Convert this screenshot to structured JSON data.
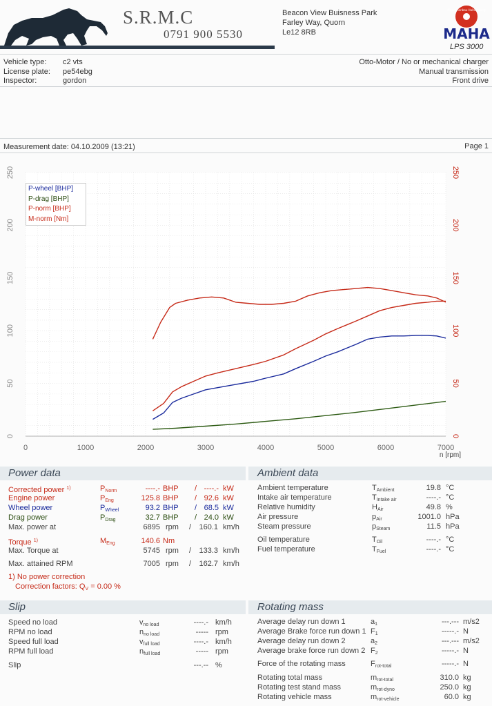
{
  "header": {
    "company": "S.R.M.C",
    "phone": "0791 900 5530",
    "address": [
      "Beacon View Buisness Park",
      "Farley Way, Quorn",
      "Le12 8RB"
    ],
    "brand_logo": "MAHA",
    "brand_tag": "Maschinenbau Haldenwang",
    "model": "LPS 3000"
  },
  "vehicle": {
    "labels": [
      "Vehicle type:",
      "License plate:",
      "Inspector:"
    ],
    "values": [
      "c2 vts",
      "pe54ebg",
      "gordon"
    ],
    "right": [
      "Otto-Motor / No or mechanical charger",
      "Manual transmission",
      "Front drive"
    ]
  },
  "measurement": {
    "date": "Measurement date: 04.10.2009 (13:21)",
    "page": "Page 1"
  },
  "chart_data": {
    "type": "line",
    "xlabel": "n [rpm]",
    "xlim": [
      0,
      7000
    ],
    "ylim": [
      0,
      250
    ],
    "y2lim": [
      0,
      250
    ],
    "xticks": [
      "0",
      "1000",
      "2000",
      "3000",
      "4000",
      "5000",
      "6000",
      "7000"
    ],
    "yticks": [
      "0",
      "50",
      "100",
      "150",
      "200",
      "250"
    ],
    "y2ticks": [
      "0",
      "50",
      "100",
      "150",
      "200",
      "250"
    ],
    "grid": true,
    "legend_position": "top-left",
    "series": [
      {
        "name": "P-wheel [BHP]",
        "color": "#1a2a9c",
        "x": [
          2120,
          2300,
          2450,
          2600,
          2800,
          3000,
          3200,
          3500,
          3800,
          4000,
          4300,
          4500,
          4800,
          5000,
          5200,
          5500,
          5700,
          5900,
          6100,
          6300,
          6500,
          6700,
          6850,
          7000
        ],
        "y": [
          16,
          22,
          32,
          36,
          40,
          44,
          46,
          49,
          52,
          55,
          59,
          64,
          71,
          76,
          80,
          87,
          92,
          94,
          95,
          95,
          95.5,
          95.5,
          95,
          93
        ]
      },
      {
        "name": "P-drag [BHP]",
        "color": "#2c5a12",
        "x": [
          2120,
          2500,
          3000,
          3500,
          4000,
          4500,
          5000,
          5500,
          6000,
          6500,
          7000
        ],
        "y": [
          6.5,
          7.5,
          9.5,
          11.5,
          14,
          16.5,
          19.5,
          22.5,
          26,
          29.5,
          33
        ]
      },
      {
        "name": "P-norm [BHP]",
        "color": "#c62a18",
        "x": [
          2120,
          2300,
          2450,
          2600,
          2800,
          3000,
          3200,
          3500,
          3800,
          4000,
          4300,
          4500,
          4800,
          5000,
          5200,
          5500,
          5700,
          5900,
          6100,
          6300,
          6500,
          6700,
          6850,
          7000
        ],
        "y": [
          24,
          31,
          42,
          47,
          52,
          57,
          60,
          64,
          68,
          71,
          77,
          83,
          91,
          97,
          102,
          109,
          114,
          119,
          122,
          124,
          126,
          127,
          128,
          128
        ]
      },
      {
        "name": "M-norm [Nm]",
        "color": "#c62a18",
        "x": [
          2120,
          2250,
          2400,
          2500,
          2700,
          2900,
          3100,
          3300,
          3500,
          3700,
          3900,
          4100,
          4300,
          4500,
          4700,
          4900,
          5100,
          5300,
          5500,
          5700,
          5900,
          6100,
          6300,
          6500,
          6700,
          6850,
          7000
        ],
        "y": [
          92,
          108,
          122,
          126,
          129,
          131,
          132,
          131,
          127,
          126,
          125,
          125,
          126,
          128,
          133,
          136,
          138,
          139,
          140,
          141,
          140,
          138,
          136,
          134,
          133,
          131,
          127
        ]
      }
    ]
  },
  "power": {
    "title": "Power data",
    "corrected": {
      "label": "Corrected power",
      "mark": "1)",
      "sym": "P",
      "sub": "Norm",
      "v1": "----.-",
      "u1": "BHP",
      "v2": "----.-",
      "u2": "kW"
    },
    "engine": {
      "label": "Engine power",
      "sym": "P",
      "sub": "Eng",
      "v1": "125.8",
      "u1": "BHP",
      "v2": "92.6",
      "u2": "kW"
    },
    "wheel": {
      "label": "Wheel power",
      "sym": "P",
      "sub": "Wheel",
      "v1": "93.2",
      "u1": "BHP",
      "v2": "68.5",
      "u2": "kW"
    },
    "drag": {
      "label": "Drag power",
      "sym": "P",
      "sub": "Drag",
      "v1": "32.7",
      "u1": "BHP",
      "v2": "24.0",
      "u2": "kW"
    },
    "maxpower": {
      "label": "Max. power at",
      "v1": "6895",
      "u1": "rpm",
      "v2": "160.1",
      "u2": "km/h"
    },
    "torque": {
      "label": "Torque",
      "mark": "1)",
      "sym": "M",
      "sub": "Eng",
      "v1": "140.6",
      "u1": "Nm"
    },
    "maxtorque": {
      "label": "Max. Torque at",
      "v1": "5745",
      "u1": "rpm",
      "v2": "133.3",
      "u2": "km/h"
    },
    "maxrpm": {
      "label": "Max. attained RPM",
      "v1": "7005",
      "u1": "rpm",
      "v2": "162.7",
      "u2": "km/h"
    },
    "note1": "1) No power correction",
    "note2_a": "Correction factors: Q",
    "note2_sub": "V",
    "note2_b": " =   0.00 %",
    "slash": "/"
  },
  "ambient": {
    "title": "Ambient data",
    "rows": [
      {
        "label": "Ambient temperature",
        "sym": "T",
        "sub": "Ambient",
        "val": "19.8",
        "unit": "°C"
      },
      {
        "label": "Intake air temperature",
        "sym": "T",
        "sub": "Intake air",
        "val": "----.-",
        "unit": "°C"
      },
      {
        "label": "Relative humidity",
        "sym": "H",
        "sub": "Air",
        "val": "49.8",
        "unit": "%"
      },
      {
        "label": "Air pressure",
        "sym": "p",
        "sub": "Air",
        "val": "1001.0",
        "unit": "hPa"
      },
      {
        "label": "Steam pressure",
        "sym": "p",
        "sub": "Steam",
        "val": "11.5",
        "unit": "hPa"
      },
      {
        "label": "Oil temperature",
        "sym": "T",
        "sub": "Oil",
        "val": "----.-",
        "unit": "°C"
      },
      {
        "label": "Fuel temperature",
        "sym": "T",
        "sub": "Fuel",
        "val": "----.-",
        "unit": "°C"
      }
    ]
  },
  "slip": {
    "title": "Slip",
    "rows": [
      {
        "label": "Speed no load",
        "sym": "v",
        "sub": "no load",
        "val": "----.-",
        "unit": "km/h"
      },
      {
        "label": "RPM no load",
        "sym": "n",
        "sub": "no load",
        "val": "-----",
        "unit": "rpm"
      },
      {
        "label": "Speed full load",
        "sym": "v",
        "sub": "full load",
        "val": "----.-",
        "unit": "km/h"
      },
      {
        "label": "RPM full load",
        "sym": "n",
        "sub": "full load",
        "val": "-----",
        "unit": "rpm"
      },
      {
        "label": "Slip",
        "sym": "",
        "sub": "",
        "val": "---.--",
        "unit": "%"
      }
    ]
  },
  "rotating": {
    "title": "Rotating mass",
    "rows": [
      {
        "label": "Average delay run down 1",
        "sym": "a",
        "sub": "1",
        "val": "---.---",
        "unit": "m/s2"
      },
      {
        "label": "Average Brake force run down 1",
        "sym": "F",
        "sub": "1",
        "val": "-----.-",
        "unit": "N"
      },
      {
        "label": "Average delay run down 2",
        "sym": "a",
        "sub": "2",
        "val": "---.---",
        "unit": "m/s2"
      },
      {
        "label": "Average brake force run down 2",
        "sym": "F",
        "sub": "2",
        "val": "-----.-",
        "unit": "N"
      },
      {
        "label": "Force of the rotating mass",
        "sym": "F",
        "sub": "rot-total",
        "val": "-----.-",
        "unit": "N"
      },
      {
        "label": "Rotating total mass",
        "sym": "m",
        "sub": "rot-total",
        "val": "310.0",
        "unit": "kg"
      },
      {
        "label": "Rotating test stand mass",
        "sym": "m",
        "sub": "rot-dyno",
        "val": "250.0",
        "unit": "kg"
      },
      {
        "label": "Rotating vehicle mass",
        "sym": "m",
        "sub": "rot-vehicle",
        "val": "60.0",
        "unit": "kg"
      }
    ]
  }
}
